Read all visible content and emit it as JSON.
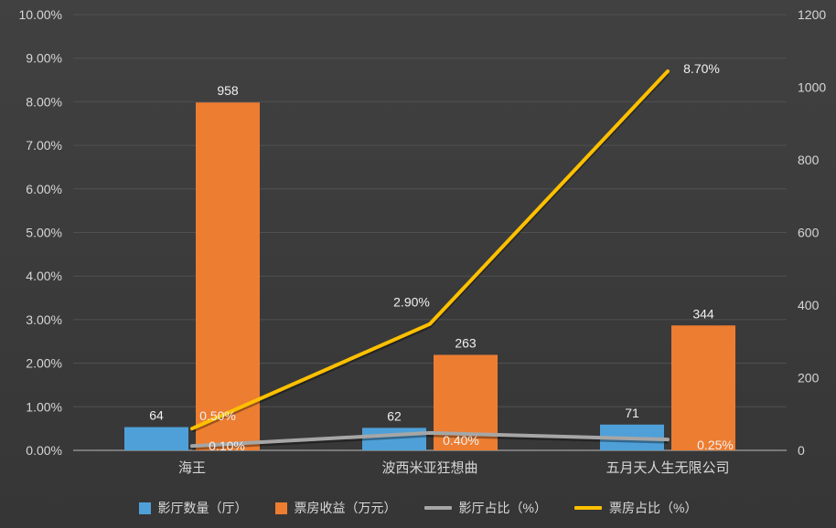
{
  "chart_data": {
    "type": "bar",
    "subtype": "combo-bar-line-dual-axis",
    "categories": [
      "海王",
      "波西米亚狂想曲",
      "五月天人生无限公司"
    ],
    "series": [
      {
        "name": "影厅数量（厅）",
        "type": "bar",
        "axis": "right",
        "color": "#4FA0D8",
        "values": [
          64,
          62,
          71
        ],
        "labels": [
          "64",
          "62",
          "71"
        ]
      },
      {
        "name": "票房收益（万元）",
        "type": "bar",
        "axis": "right",
        "color": "#ED7D31",
        "values": [
          958,
          263,
          344
        ],
        "labels": [
          "958",
          "263",
          "344"
        ]
      },
      {
        "name": "影厅占比（%）",
        "type": "line",
        "axis": "left",
        "color": "#A6A6A6",
        "values": [
          0.1,
          0.4,
          0.25
        ],
        "labels": [
          "0.10%",
          "0.40%",
          "0.25%"
        ]
      },
      {
        "name": "票房占比（%）",
        "type": "line",
        "axis": "left",
        "color": "#FFC000",
        "values": [
          0.5,
          2.9,
          8.7
        ],
        "labels": [
          "0.50%",
          "2.90%",
          "8.70%"
        ]
      }
    ],
    "left_axis": {
      "min": 0,
      "max": 10,
      "step": 1,
      "tick_labels": [
        "0.00%",
        "1.00%",
        "2.00%",
        "3.00%",
        "4.00%",
        "5.00%",
        "6.00%",
        "7.00%",
        "8.00%",
        "9.00%",
        "10.00%"
      ]
    },
    "right_axis": {
      "min": 0,
      "max": 1200,
      "step": 200,
      "tick_labels": [
        "0",
        "200",
        "400",
        "600",
        "800",
        "1000",
        "1200"
      ]
    },
    "grid": true,
    "legend_position": "bottom",
    "title": ""
  },
  "colors": {
    "background": "#3B3B3B",
    "grid": "#515151",
    "axis_text": "#D6D6D6",
    "data_label": "#F0F0F0",
    "axis_line": "#8F8F8F"
  }
}
